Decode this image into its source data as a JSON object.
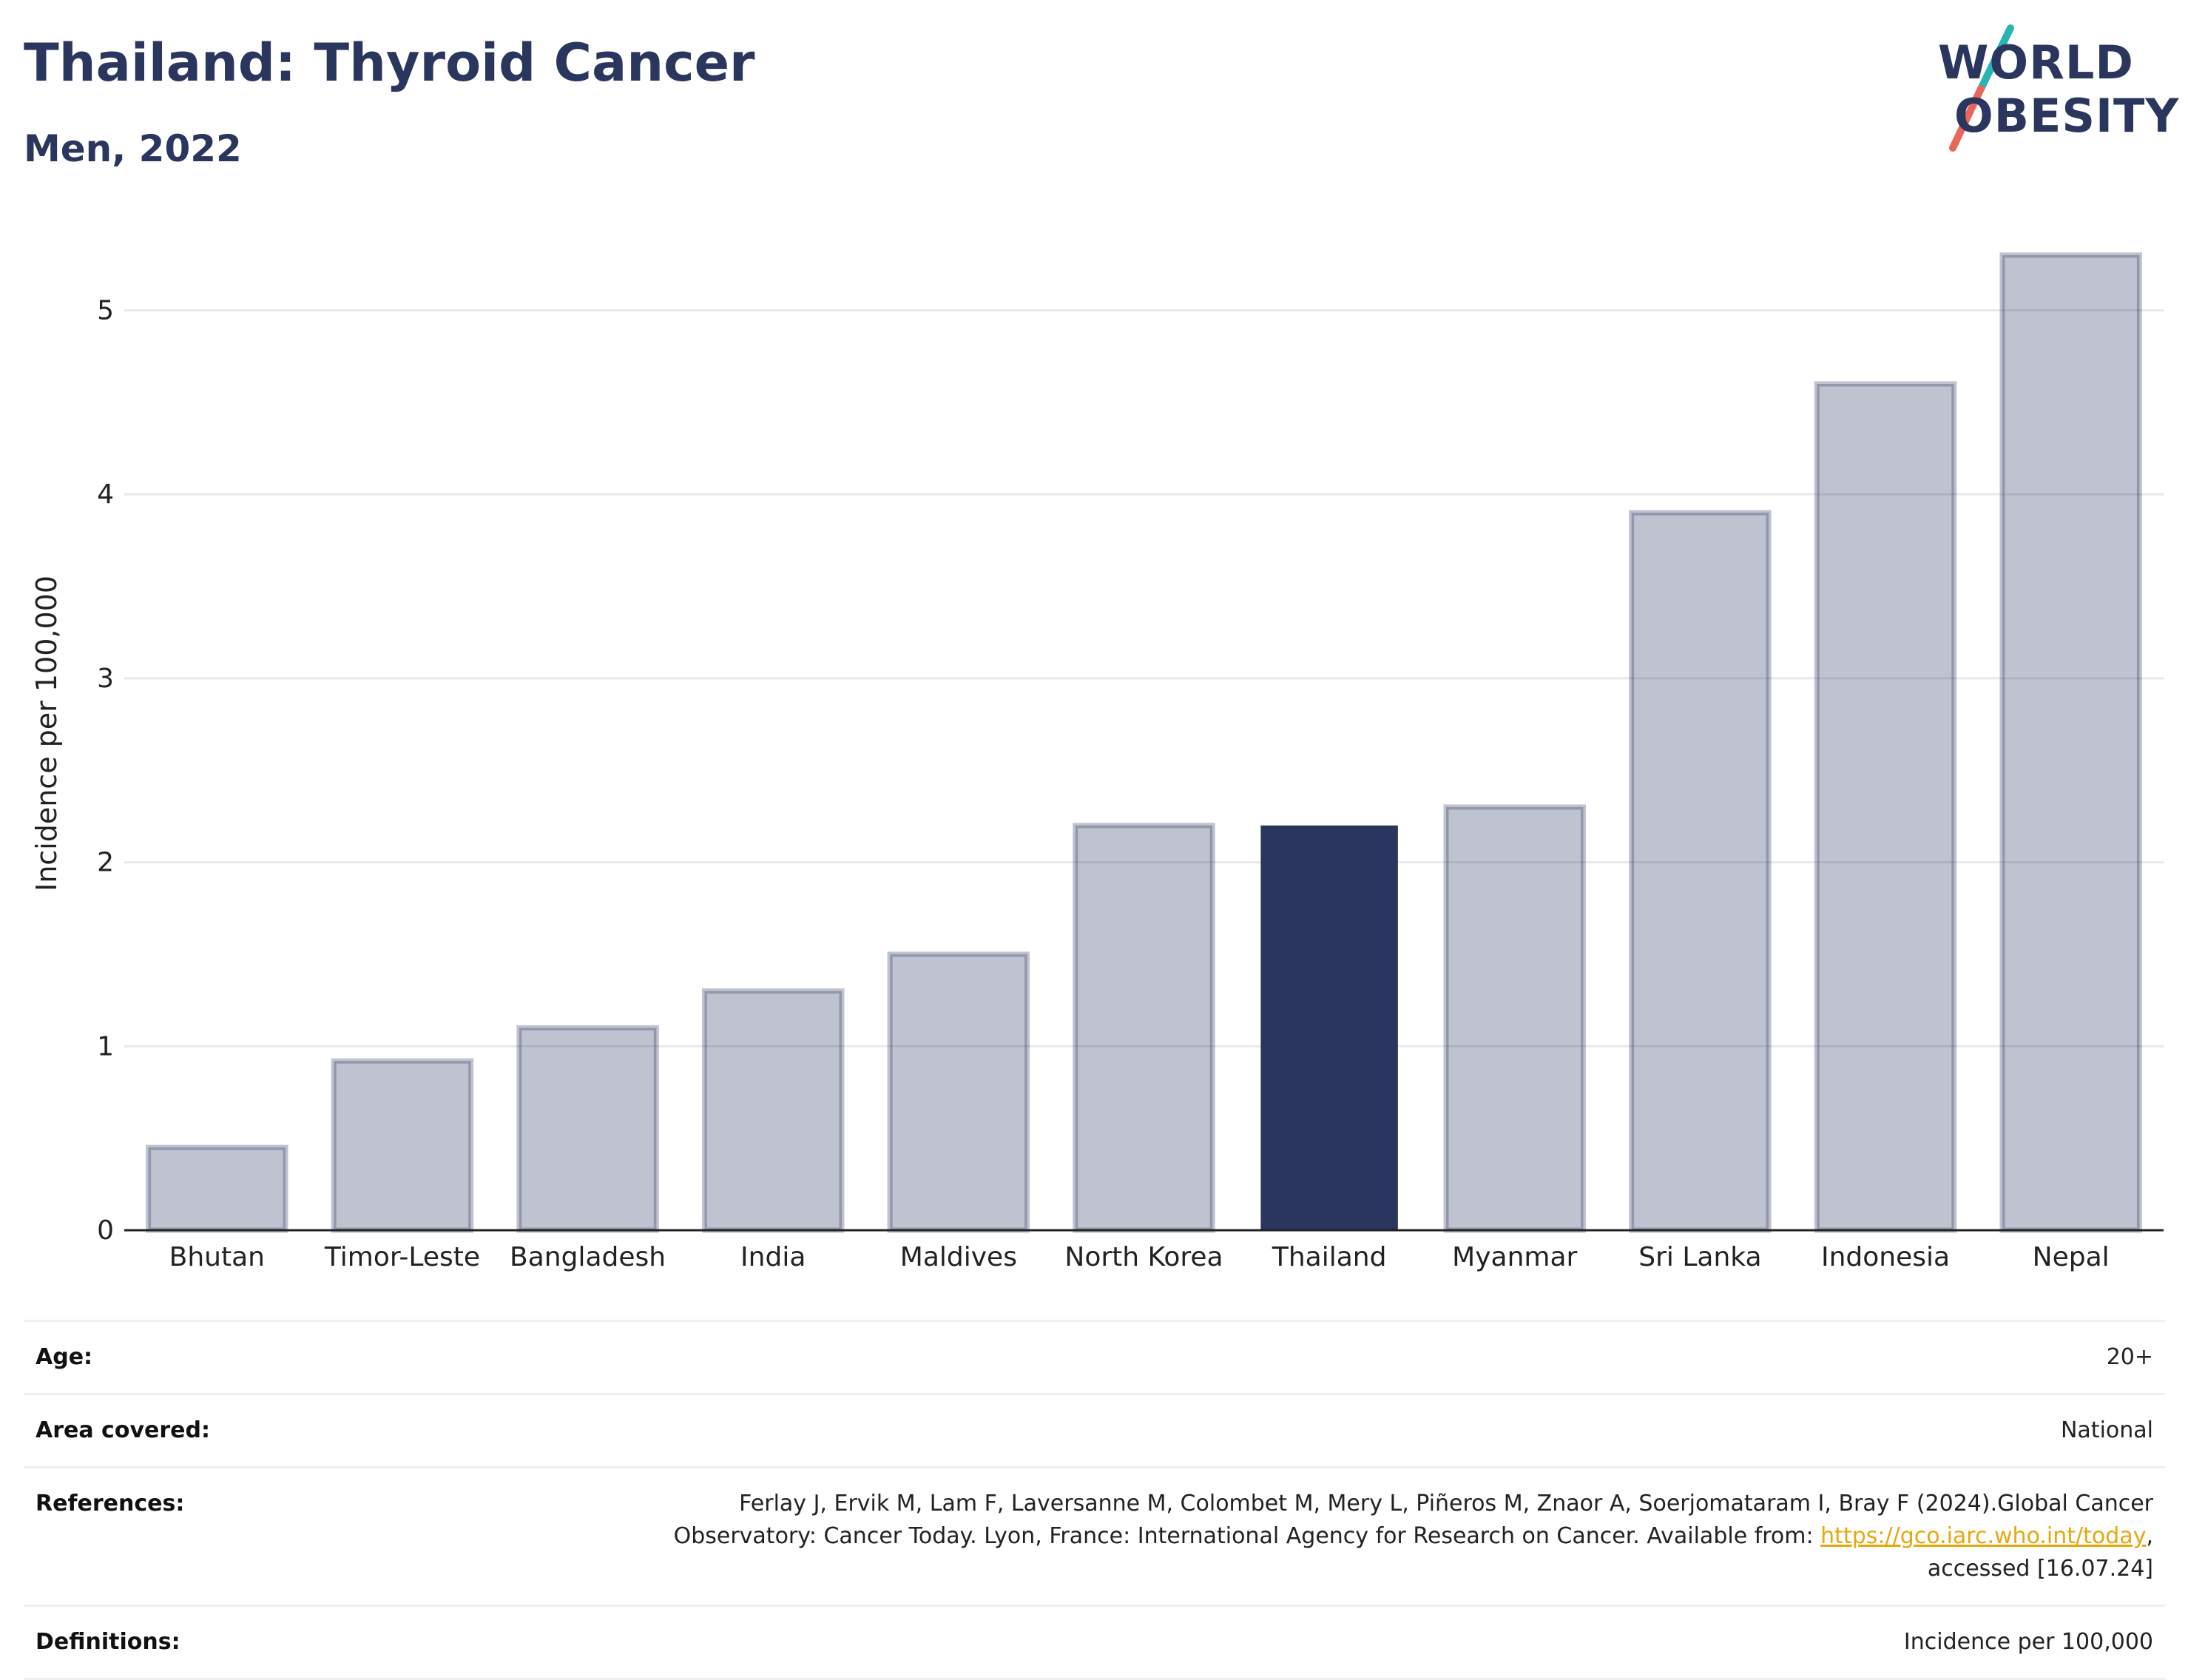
{
  "header": {
    "title": "Thailand: Thyroid Cancer",
    "subtitle": "Men, 2022"
  },
  "logo": {
    "line1": "WORLD",
    "line2": "OBESITY",
    "slash_colors": [
      "#2bb5b0",
      "#e8675a"
    ]
  },
  "colors": {
    "highlight": "#2b365f",
    "bar": "#2b365f",
    "grid": "#e8e9ee"
  },
  "chart_data": {
    "type": "bar",
    "categories": [
      "Bhutan",
      "Timor-Leste",
      "Bangladesh",
      "India",
      "Maldives",
      "North Korea",
      "Thailand",
      "Myanmar",
      "Sri Lanka",
      "Indonesia",
      "Nepal"
    ],
    "values": [
      0.45,
      0.92,
      1.1,
      1.3,
      1.5,
      2.2,
      2.2,
      2.3,
      3.9,
      4.6,
      5.3
    ],
    "highlight": "Thailand",
    "title": "Thailand: Thyroid Cancer",
    "subtitle": "Men, 2022",
    "xlabel": "",
    "ylabel": "Incidence per 100,000",
    "ylim": [
      0,
      5.4
    ],
    "yticks": [
      0,
      1,
      2,
      3,
      4,
      5
    ],
    "grid": true,
    "legend": "none"
  },
  "meta": {
    "age_label": "Age:",
    "age_value": "20+",
    "area_label": "Area covered:",
    "area_value": "National",
    "references_label": "References:",
    "references_line1": "Ferlay J, Ervik M, Lam F, Laversanne M, Colombet M, Mery L, Piñeros M, Znaor A, Soerjomataram I, Bray F (2024).Global Cancer",
    "references_line2": "Observatory: Cancer Today. Lyon, France: International Agency for Research on Cancer. Available from: ",
    "references_link": "https://gco.iarc.who.int/today",
    "references_line3": "accessed [16.07.24]",
    "definitions_label": "Definitions:",
    "definitions_value": "Incidence per 100,000"
  }
}
